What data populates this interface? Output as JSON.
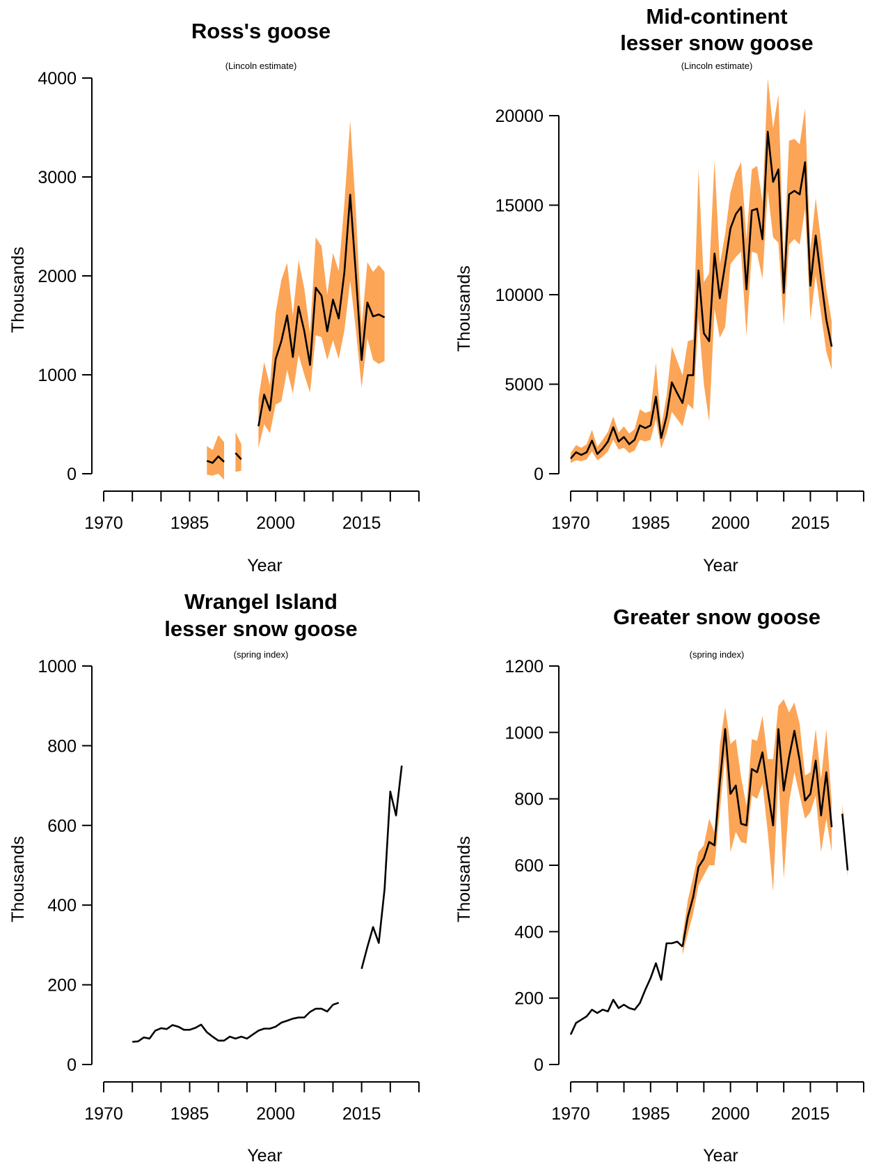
{
  "colors": {
    "band": "#FCA556",
    "line": "#000000"
  },
  "chart_data": [
    {
      "type": "line",
      "title": [
        "Ross's goose"
      ],
      "subtitle": "(Lincoln estimate)",
      "xlabel": "Year",
      "ylabel": "Thousands",
      "xlim": [
        1970,
        2025
      ],
      "ylim": [
        0,
        4000
      ],
      "xticks": [
        1970,
        1975,
        1980,
        1985,
        1990,
        1995,
        2000,
        2005,
        2010,
        2015,
        2020,
        2025
      ],
      "xtick_labels": [
        "1970",
        "1985",
        "2000",
        "2015"
      ],
      "xtick_label_years": [
        1970,
        1985,
        2000,
        2015
      ],
      "yticks": [
        0,
        1000,
        2000,
        3000,
        4000
      ],
      "ytick_labels": [
        "0",
        "1000",
        "2000",
        "3000",
        "4000"
      ],
      "segments": [
        {
          "x": [
            1988,
            1989,
            1990,
            1991
          ],
          "y": [
            130,
            110,
            175,
            120
          ],
          "lower": [
            -10,
            -20,
            0,
            -60
          ],
          "upper": [
            280,
            240,
            390,
            320
          ]
        },
        {
          "x": [
            1993,
            1994
          ],
          "y": [
            210,
            145
          ],
          "lower": [
            20,
            30
          ],
          "upper": [
            420,
            300
          ]
        },
        {
          "x": [
            1997,
            1998,
            1999,
            2000,
            2001,
            2002,
            2003,
            2004,
            2005,
            2006,
            2007,
            2008,
            2009,
            2010,
            2011,
            2012,
            2013,
            2014,
            2015,
            2016,
            2017,
            2018,
            2019
          ],
          "y": [
            480,
            800,
            640,
            1160,
            1340,
            1600,
            1180,
            1690,
            1440,
            1100,
            1880,
            1800,
            1440,
            1760,
            1570,
            2040,
            2820,
            2010,
            1150,
            1730,
            1590,
            1610,
            1580
          ],
          "lower": [
            260,
            500,
            410,
            700,
            730,
            1050,
            810,
            1200,
            1000,
            820,
            1400,
            1380,
            1150,
            1350,
            1160,
            1450,
            1950,
            1450,
            870,
            1370,
            1150,
            1110,
            1140
          ],
          "upper": [
            760,
            1130,
            890,
            1630,
            1960,
            2130,
            1600,
            2160,
            1870,
            1420,
            2390,
            2300,
            1810,
            2230,
            2050,
            2740,
            3570,
            2660,
            1480,
            2140,
            2040,
            2110,
            2040
          ]
        }
      ]
    },
    {
      "type": "line",
      "title": [
        "Mid-continent",
        "lesser snow goose"
      ],
      "subtitle": "(Lincoln estimate)",
      "xlabel": "Year",
      "ylabel": "Thousands",
      "xlim": [
        1970,
        2025
      ],
      "ylim": [
        0,
        20000
      ],
      "xticks": [
        1970,
        1975,
        1980,
        1985,
        1990,
        1995,
        2000,
        2005,
        2010,
        2015,
        2020,
        2025
      ],
      "xtick_labels": [
        "1970",
        "1985",
        "2000",
        "2015"
      ],
      "xtick_label_years": [
        1970,
        1985,
        2000,
        2015
      ],
      "yticks": [
        0,
        5000,
        10000,
        15000,
        20000
      ],
      "ytick_labels": [
        "0",
        "5000",
        "10000",
        "15000",
        "20000"
      ],
      "segments": [
        {
          "x": [
            1970,
            1971,
            1972,
            1973,
            1974,
            1975,
            1976,
            1977,
            1978,
            1979,
            1980,
            1981,
            1982,
            1983,
            1984,
            1985,
            1986,
            1987,
            1988,
            1989,
            1990,
            1991,
            1992,
            1993,
            1994,
            1995,
            1996,
            1997,
            1998,
            1999,
            2000,
            2001,
            2002,
            2003,
            2004,
            2005,
            2006,
            2007,
            2008,
            2009,
            2010,
            2011,
            2012,
            2013,
            2014,
            2015,
            2016,
            2017,
            2018,
            2019
          ],
          "y": [
            850,
            1200,
            1050,
            1200,
            1850,
            1100,
            1400,
            1800,
            2600,
            1800,
            2050,
            1650,
            1900,
            2700,
            2550,
            2700,
            4300,
            2000,
            3200,
            5100,
            4500,
            3950,
            5500,
            5500,
            11350,
            7850,
            7400,
            12300,
            9800,
            11700,
            13700,
            14500,
            14900,
            10300,
            14700,
            14800,
            13100,
            19100,
            16300,
            17000,
            10100,
            15600,
            15800,
            15600,
            17400,
            10500,
            13300,
            10900,
            8600,
            7100
          ],
          "lower": [
            600,
            750,
            700,
            800,
            1250,
            750,
            950,
            1250,
            1900,
            1350,
            1450,
            1150,
            1300,
            1900,
            1800,
            1900,
            3050,
            1400,
            2250,
            3450,
            3050,
            2650,
            3900,
            3600,
            8700,
            5000,
            2900,
            9200,
            7600,
            8200,
            11700,
            12100,
            12400,
            7700,
            12400,
            12300,
            10900,
            15800,
            13200,
            12900,
            8300,
            12800,
            13100,
            12800,
            14800,
            8600,
            11100,
            8900,
            6800,
            5800
          ],
          "upper": [
            1150,
            1600,
            1450,
            1650,
            2450,
            1500,
            1900,
            2350,
            3200,
            2300,
            2650,
            2250,
            2500,
            3600,
            3400,
            3500,
            6200,
            2650,
            4350,
            7100,
            6300,
            5500,
            7400,
            7500,
            17000,
            10700,
            11200,
            17500,
            11700,
            13400,
            15700,
            16800,
            17400,
            13100,
            17000,
            17200,
            15200,
            22100,
            19300,
            21200,
            11800,
            18600,
            18700,
            18400,
            20400,
            12500,
            15400,
            13000,
            10300,
            8500
          ]
        }
      ]
    },
    {
      "type": "line",
      "title": [
        "Wrangel Island",
        "lesser snow goose"
      ],
      "subtitle": "(spring index)",
      "xlabel": "Year",
      "ylabel": "Thousands",
      "xlim": [
        1970,
        2025
      ],
      "ylim": [
        0,
        1000
      ],
      "xticks": [
        1970,
        1975,
        1980,
        1985,
        1990,
        1995,
        2000,
        2005,
        2010,
        2015,
        2020,
        2025
      ],
      "xtick_labels": [
        "1970",
        "1985",
        "2000",
        "2015"
      ],
      "xtick_label_years": [
        1970,
        1985,
        2000,
        2015
      ],
      "yticks": [
        0,
        200,
        400,
        600,
        800,
        1000
      ],
      "ytick_labels": [
        "0",
        "200",
        "400",
        "600",
        "800",
        "1000"
      ],
      "segments": [
        {
          "x": [
            1975,
            1976,
            1977,
            1978,
            1979,
            1980,
            1981,
            1982,
            1983,
            1984,
            1985,
            1986,
            1987,
            1988,
            1989,
            1990,
            1991,
            1992,
            1993,
            1994,
            1995,
            1996,
            1997,
            1998,
            1999,
            2000,
            2001,
            2002,
            2003,
            2004,
            2005,
            2006,
            2007,
            2008,
            2009,
            2010,
            2011
          ],
          "y": [
            57,
            58,
            68,
            65,
            85,
            91,
            89,
            99,
            95,
            87,
            87,
            92,
            100,
            81,
            70,
            60,
            60,
            70,
            65,
            70,
            65,
            75,
            85,
            90,
            90,
            95,
            105,
            110,
            115,
            118,
            118,
            132,
            140,
            140,
            133,
            150,
            155
          ]
        },
        {
          "x": [
            2015,
            2016,
            2017,
            2018,
            2019,
            2020,
            2021,
            2022
          ],
          "y": [
            240,
            295,
            345,
            305,
            440,
            685,
            625,
            750
          ]
        }
      ]
    },
    {
      "type": "line",
      "title": [
        "Greater snow goose"
      ],
      "subtitle": "(spring index)",
      "xlabel": "Year",
      "ylabel": "Thousands",
      "xlim": [
        1970,
        2025
      ],
      "ylim": [
        0,
        1200
      ],
      "xticks": [
        1970,
        1975,
        1980,
        1985,
        1990,
        1995,
        2000,
        2005,
        2010,
        2015,
        2020,
        2025
      ],
      "xtick_labels": [
        "1970",
        "1985",
        "2000",
        "2015"
      ],
      "xtick_label_years": [
        1970,
        1985,
        2000,
        2015
      ],
      "yticks": [
        0,
        200,
        400,
        600,
        800,
        1000,
        1200
      ],
      "ytick_labels": [
        "0",
        "200",
        "400",
        "600",
        "800",
        "1000",
        "1200"
      ],
      "segments": [
        {
          "x": [
            1970,
            1971,
            1972,
            1973,
            1974,
            1975,
            1976,
            1977,
            1978,
            1979,
            1980,
            1981,
            1982,
            1983,
            1984,
            1985,
            1986,
            1987,
            1988,
            1989,
            1990,
            1991
          ],
          "y": [
            90,
            125,
            135,
            145,
            165,
            155,
            165,
            160,
            195,
            170,
            180,
            170,
            165,
            185,
            225,
            260,
            305,
            255,
            365,
            365,
            370,
            355
          ]
        },
        {
          "x": [
            1991,
            1992,
            1993,
            1994,
            1995,
            1996,
            1997,
            1998,
            1999,
            2000,
            2001,
            2002,
            2003,
            2004,
            2005,
            2006,
            2007,
            2008,
            2009,
            2010,
            2011,
            2012,
            2013,
            2014,
            2015,
            2016,
            2017,
            2018,
            2019
          ],
          "y": [
            355,
            445,
            505,
            595,
            620,
            670,
            660,
            850,
            1010,
            815,
            840,
            725,
            720,
            890,
            880,
            940,
            825,
            720,
            1010,
            825,
            925,
            1005,
            915,
            795,
            815,
            915,
            750,
            880,
            715
          ],
          "lower": [
            330,
            395,
            455,
            540,
            570,
            600,
            600,
            760,
            930,
            640,
            700,
            670,
            665,
            810,
            800,
            845,
            700,
            520,
            870,
            560,
            790,
            880,
            810,
            740,
            760,
            810,
            640,
            740,
            640
          ],
          "upper": [
            385,
            495,
            565,
            640,
            660,
            740,
            700,
            960,
            1075,
            965,
            980,
            865,
            780,
            980,
            975,
            1050,
            920,
            920,
            1080,
            1100,
            1060,
            1090,
            1025,
            870,
            880,
            1010,
            860,
            1010,
            790
          ]
        },
        {
          "x": [
            2021,
            2022
          ],
          "y": [
            755,
            585
          ],
          "lower": [
            745,
            565
          ],
          "upper": [
            785,
            605
          ]
        }
      ]
    }
  ]
}
